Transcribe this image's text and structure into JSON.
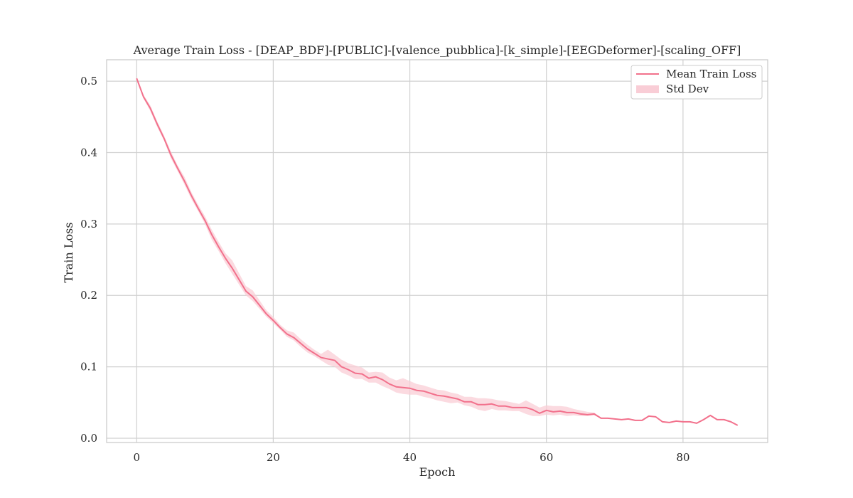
{
  "chart_data": {
    "type": "line",
    "title": "Average Train Loss - [DEAP_BDF]-[PUBLIC]-[valence_pubblica]-[k_simple]-[EEGDeformer]-[scaling_OFF]",
    "xlabel": "Epoch",
    "ylabel": "Train Loss",
    "xlim": [
      -4.4,
      92.4
    ],
    "ylim": [
      -0.006,
      0.53
    ],
    "xticks": [
      0,
      20,
      40,
      60,
      80
    ],
    "yticks": [
      0.0,
      0.1,
      0.2,
      0.3,
      0.4,
      0.5
    ],
    "xtick_labels": [
      "0",
      "20",
      "40",
      "60",
      "80"
    ],
    "ytick_labels": [
      "0.0",
      "0.1",
      "0.2",
      "0.3",
      "0.4",
      "0.5"
    ],
    "grid": true,
    "legend_position": "top-right",
    "colors": {
      "line": "#f2718c",
      "band": "#f9cdd6",
      "grid": "#d0d0d0",
      "frame": "#c8c8c8"
    },
    "series": [
      {
        "name": "Mean Train Loss",
        "x": [
          0,
          1,
          2,
          3,
          4,
          5,
          6,
          7,
          8,
          9,
          10,
          11,
          12,
          13,
          14,
          15,
          16,
          17,
          18,
          19,
          20,
          21,
          22,
          23,
          24,
          25,
          26,
          27,
          28,
          29,
          30,
          31,
          32,
          33,
          34,
          35,
          36,
          37,
          38,
          39,
          40,
          41,
          42,
          43,
          44,
          45,
          46,
          47,
          48,
          49,
          50,
          51,
          52,
          53,
          54,
          55,
          56,
          57,
          58,
          59,
          60,
          61,
          62,
          63,
          64,
          65,
          66,
          67,
          68,
          69,
          70,
          71,
          72,
          73,
          74,
          75,
          76,
          77,
          78,
          79,
          80,
          81,
          82,
          83,
          84,
          85,
          86,
          87,
          88
        ],
        "y": [
          0.504,
          0.478,
          0.462,
          0.44,
          0.42,
          0.397,
          0.378,
          0.36,
          0.34,
          0.322,
          0.305,
          0.285,
          0.268,
          0.252,
          0.238,
          0.222,
          0.206,
          0.198,
          0.186,
          0.174,
          0.165,
          0.155,
          0.146,
          0.141,
          0.133,
          0.125,
          0.119,
          0.113,
          0.111,
          0.109,
          0.1,
          0.096,
          0.091,
          0.09,
          0.084,
          0.086,
          0.082,
          0.076,
          0.072,
          0.071,
          0.07,
          0.067,
          0.066,
          0.063,
          0.06,
          0.059,
          0.057,
          0.055,
          0.051,
          0.051,
          0.047,
          0.047,
          0.048,
          0.045,
          0.045,
          0.043,
          0.043,
          0.043,
          0.04,
          0.035,
          0.039,
          0.037,
          0.038,
          0.036,
          0.036,
          0.034,
          0.033,
          0.034,
          0.028,
          0.028,
          0.027,
          0.026,
          0.027,
          0.025,
          0.025,
          0.031,
          0.03,
          0.023,
          0.022,
          0.024,
          0.023,
          0.023,
          0.021,
          0.026,
          0.032,
          0.026,
          0.026,
          0.023,
          0.018
        ]
      },
      {
        "name": "Std Dev",
        "type": "band",
        "lower": [
          0.503,
          0.476,
          0.458,
          0.436,
          0.417,
          0.392,
          0.374,
          0.355,
          0.335,
          0.318,
          0.3,
          0.278,
          0.262,
          0.245,
          0.23,
          0.215,
          0.2,
          0.192,
          0.181,
          0.17,
          0.161,
          0.152,
          0.142,
          0.137,
          0.128,
          0.12,
          0.115,
          0.109,
          0.103,
          0.1,
          0.092,
          0.088,
          0.083,
          0.083,
          0.078,
          0.078,
          0.073,
          0.069,
          0.064,
          0.062,
          0.061,
          0.061,
          0.058,
          0.056,
          0.053,
          0.051,
          0.049,
          0.05,
          0.046,
          0.044,
          0.04,
          0.038,
          0.041,
          0.039,
          0.039,
          0.038,
          0.038,
          0.034,
          0.031,
          0.031,
          0.033,
          0.032,
          0.033,
          0.031,
          0.032,
          0.031,
          0.031,
          0.032,
          0.028,
          0.028,
          0.027,
          0.026,
          0.027,
          0.025,
          0.025,
          0.031,
          0.03,
          0.023,
          0.022,
          0.024,
          0.023,
          0.023,
          0.021,
          0.026,
          0.032,
          0.026,
          0.026,
          0.023,
          0.018
        ],
        "upper": [
          0.505,
          0.481,
          0.466,
          0.444,
          0.424,
          0.402,
          0.382,
          0.366,
          0.345,
          0.327,
          0.311,
          0.292,
          0.275,
          0.259,
          0.249,
          0.231,
          0.213,
          0.207,
          0.193,
          0.179,
          0.17,
          0.159,
          0.151,
          0.148,
          0.139,
          0.131,
          0.124,
          0.118,
          0.124,
          0.117,
          0.11,
          0.105,
          0.102,
          0.099,
          0.092,
          0.093,
          0.092,
          0.085,
          0.081,
          0.084,
          0.08,
          0.076,
          0.074,
          0.071,
          0.068,
          0.067,
          0.064,
          0.062,
          0.058,
          0.058,
          0.056,
          0.056,
          0.055,
          0.053,
          0.052,
          0.05,
          0.048,
          0.053,
          0.048,
          0.043,
          0.046,
          0.045,
          0.045,
          0.044,
          0.041,
          0.039,
          0.037,
          0.036,
          0.028,
          0.028,
          0.027,
          0.026,
          0.027,
          0.025,
          0.025,
          0.031,
          0.03,
          0.023,
          0.022,
          0.024,
          0.023,
          0.023,
          0.021,
          0.026,
          0.032,
          0.026,
          0.026,
          0.023,
          0.018
        ]
      }
    ]
  }
}
